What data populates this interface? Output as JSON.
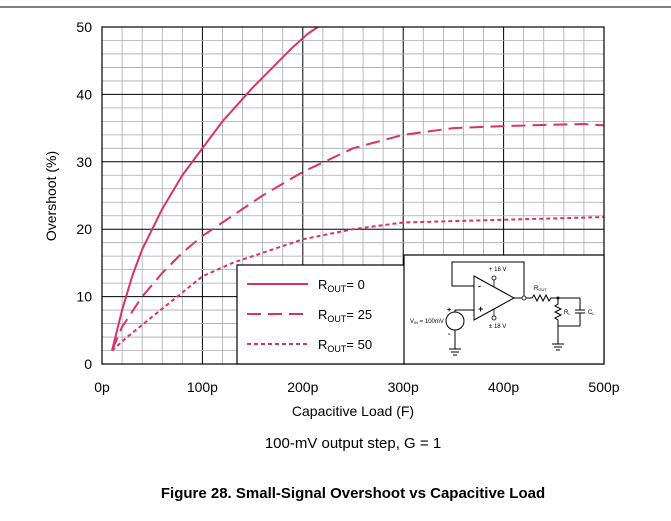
{
  "chart_data": {
    "type": "line",
    "xlabel": "Capacitive Load (F)",
    "ylabel": "Overshoot (%)",
    "xlim": [
      0,
      500
    ],
    "ylim": [
      0,
      50
    ],
    "x_ticks": [
      "0p",
      "100p",
      "200p",
      "300p",
      "400p",
      "500p"
    ],
    "y_ticks": [
      "0",
      "10",
      "20",
      "30",
      "40",
      "50"
    ],
    "grid": true,
    "legend_position": "bottom-center",
    "series": [
      {
        "name": "R_OUT = 0",
        "legend": {
          "prefix": "R",
          "sub": "OUT",
          "suffix": "= 0"
        },
        "style": "solid",
        "color": "#d6336c",
        "points": [
          [
            10,
            2
          ],
          [
            20,
            8
          ],
          [
            30,
            13
          ],
          [
            40,
            17
          ],
          [
            60,
            23
          ],
          [
            80,
            28
          ],
          [
            100,
            32
          ],
          [
            120,
            36
          ],
          [
            150,
            41
          ],
          [
            170,
            44
          ],
          [
            190,
            47
          ],
          [
            205,
            49
          ],
          [
            215,
            50
          ]
        ]
      },
      {
        "name": "R_OUT = 25",
        "legend": {
          "prefix": "R",
          "sub": "OUT",
          "suffix": "= 25"
        },
        "style": "dashed",
        "color": "#d6336c",
        "points": [
          [
            10,
            2
          ],
          [
            20,
            5.5
          ],
          [
            40,
            10
          ],
          [
            60,
            13.5
          ],
          [
            80,
            16.5
          ],
          [
            100,
            19
          ],
          [
            130,
            22
          ],
          [
            160,
            25
          ],
          [
            200,
            28.5
          ],
          [
            250,
            32
          ],
          [
            300,
            34
          ],
          [
            350,
            35
          ],
          [
            400,
            35.3
          ],
          [
            450,
            35.5
          ],
          [
            480,
            35.6
          ],
          [
            500,
            35.4
          ]
        ]
      },
      {
        "name": "R_OUT = 50",
        "legend": {
          "prefix": "R",
          "sub": "OUT",
          "suffix": "= 50"
        },
        "style": "dotted",
        "color": "#d6336c",
        "points": [
          [
            10,
            2
          ],
          [
            25,
            4
          ],
          [
            50,
            7
          ],
          [
            75,
            10
          ],
          [
            100,
            13
          ],
          [
            130,
            15
          ],
          [
            160,
            16.5
          ],
          [
            200,
            18.5
          ],
          [
            250,
            20
          ],
          [
            300,
            21
          ],
          [
            350,
            21.2
          ],
          [
            400,
            21.4
          ],
          [
            450,
            21.6
          ],
          [
            500,
            21.8
          ]
        ]
      }
    ],
    "annotation": "100-mV output step, G = 1",
    "caption": "Figure 28. Small-Signal Overshoot vs Capacitive Load"
  },
  "schematic": {
    "vpos": "+ 18 V",
    "vneg": "± 18 V",
    "rout": {
      "prefix": "R",
      "sub": "OUT"
    },
    "rl": {
      "prefix": "R",
      "sub": "L"
    },
    "cl": {
      "prefix": "C",
      "sub": "L"
    },
    "vin": {
      "prefix": "V",
      "sub": "IN",
      "suffix": " = 100mV"
    },
    "minus": "-",
    "plus": "+"
  }
}
